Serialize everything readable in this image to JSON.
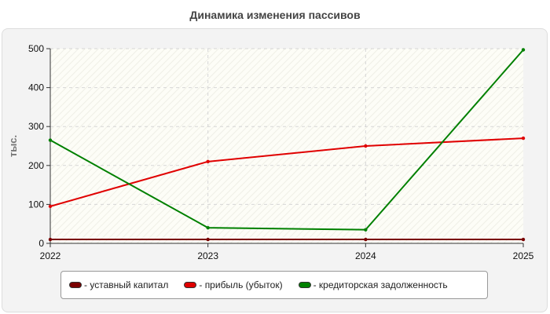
{
  "chart_data": {
    "type": "line",
    "title": "Динамика изменения пассивов",
    "xlabel": "",
    "ylabel": "тыс.",
    "x": [
      "2022",
      "2023",
      "2024",
      "2025"
    ],
    "ylim": [
      0,
      500
    ],
    "yticks": [
      "0",
      "100",
      "200",
      "300",
      "400",
      "500"
    ],
    "grid": true,
    "legend_position": "bottom",
    "series": [
      {
        "name": "уставный капитал",
        "color": "#7a0000",
        "values": [
          10,
          10,
          10,
          10
        ]
      },
      {
        "name": "прибыль (убыток)",
        "color": "#e00000",
        "values": [
          95,
          210,
          250,
          270
        ]
      },
      {
        "name": "кредиторская задолженность",
        "color": "#008000",
        "values": [
          265,
          40,
          35,
          497
        ]
      }
    ]
  }
}
